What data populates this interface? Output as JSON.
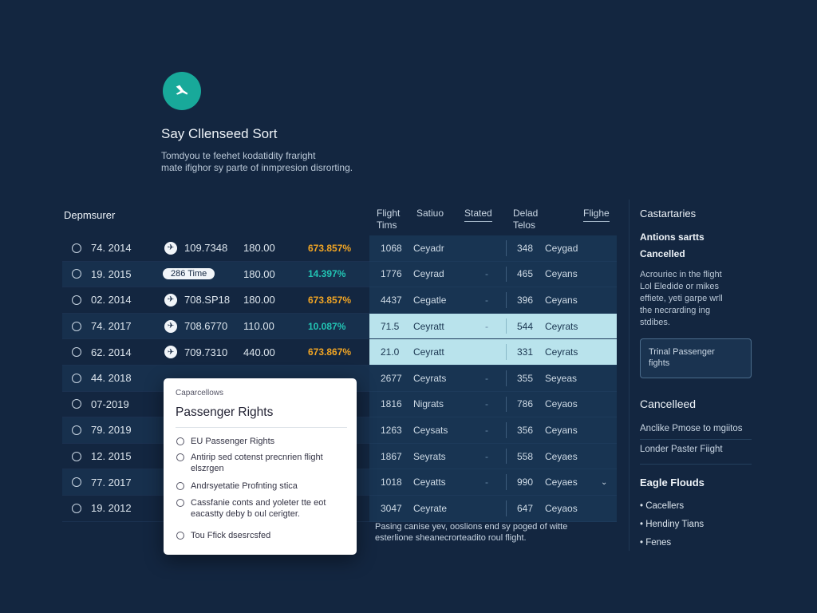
{
  "header": {
    "logo_icon": "plane-icon",
    "title": "Say Cllenseed Sort",
    "subtitle_line1": "Tomdyou te feehet kodatidity fraright",
    "subtitle_line2": "mate ifighor sy parte of inmpresion disrorting."
  },
  "left_table": {
    "header": "Depmsurer",
    "rows": [
      {
        "date": "74. 2014",
        "icon": "plane",
        "code": "109.7348",
        "fare": "180.00",
        "pct": "673.857%",
        "pct_color": "orange"
      },
      {
        "date": "19. 2015",
        "icon": "pill",
        "pill": "286 Time",
        "code": "",
        "fare": "180.00",
        "pct": "14.397%",
        "pct_color": "teal"
      },
      {
        "date": "02. 2014",
        "icon": "plane",
        "code": "708.SP18",
        "fare": "180.00",
        "pct": "673.857%",
        "pct_color": "orange"
      },
      {
        "date": "74. 2017",
        "icon": "plane",
        "code": "708.6770",
        "fare": "110.00",
        "pct": "10.087%",
        "pct_color": "teal"
      },
      {
        "date": "62. 2014",
        "icon": "plane",
        "code": "709.7310",
        "fare": "440.00",
        "pct": "673.867%",
        "pct_color": "orange"
      },
      {
        "date": "44. 2018",
        "icon": "",
        "code": "",
        "fare": "",
        "pct": "",
        "pct_color": ""
      },
      {
        "date": "07-2019",
        "icon": "",
        "code": "",
        "fare": "",
        "pct": "",
        "pct_color": ""
      },
      {
        "date": "79. 2019",
        "icon": "",
        "code": "",
        "fare": "",
        "pct": "",
        "pct_color": ""
      },
      {
        "date": "12. 2015",
        "icon": "",
        "code": "",
        "fare": "",
        "pct": "",
        "pct_color": ""
      },
      {
        "date": "77. 2017",
        "icon": "",
        "code": "",
        "fare": "",
        "pct": "",
        "pct_color": ""
      },
      {
        "date": "19. 2012",
        "icon": "",
        "code": "",
        "fare": "",
        "pct": "",
        "pct_color": ""
      }
    ]
  },
  "mid_table": {
    "headers": [
      {
        "text": "Flight\nTims",
        "underline": false
      },
      {
        "text": "Satiuo",
        "underline": false
      },
      {
        "text": "Stated",
        "underline": true
      },
      {
        "text": "Delad\nTelos",
        "underline": false
      },
      {
        "text": "Flighe",
        "underline": true
      }
    ],
    "rows": [
      {
        "c1": "1068",
        "c2": "Ceyadr",
        "dash": "",
        "c3": "348",
        "c4": "Ceygad",
        "hl": false,
        "chev": ""
      },
      {
        "c1": "1776",
        "c2": "Ceyrad",
        "dash": "-",
        "c3": "465",
        "c4": "Ceyans",
        "hl": false,
        "chev": ""
      },
      {
        "c1": "4437",
        "c2": "Cegatle",
        "dash": "-",
        "c3": "396",
        "c4": "Ceyans",
        "hl": false,
        "chev": ""
      },
      {
        "c1": "71.5",
        "c2": "Ceyratt",
        "dash": "-",
        "c3": "544",
        "c4": "Ceyrats",
        "hl": true,
        "chev": ""
      },
      {
        "c1": "21.0",
        "c2": "Ceyratt",
        "dash": "",
        "c3": "331",
        "c4": "Ceyrats",
        "hl": true,
        "chev": ""
      },
      {
        "c1": "2677",
        "c2": "Ceyrats",
        "dash": "-",
        "c3": "355",
        "c4": "Seyeas",
        "hl": false,
        "chev": ""
      },
      {
        "c1": "1816",
        "c2": "Nigrats",
        "dash": "-",
        "c3": "786",
        "c4": "Ceyaos",
        "hl": false,
        "chev": ""
      },
      {
        "c1": "1263",
        "c2": "Ceysats",
        "dash": "-",
        "c3": "356",
        "c4": "Ceyans",
        "hl": false,
        "chev": ""
      },
      {
        "c1": "1867",
        "c2": "Seyrats",
        "dash": "-",
        "c3": "558",
        "c4": "Ceyaes",
        "hl": false,
        "chev": ""
      },
      {
        "c1": "1018",
        "c2": "Ceyatts",
        "dash": "-",
        "c3": "990",
        "c4": "Ceyaes",
        "hl": false,
        "chev": "⌄"
      },
      {
        "c1": "3047",
        "c2": "Ceyrate",
        "dash": "",
        "c3": "647",
        "c4": "Ceyaos",
        "hl": false,
        "chev": ""
      }
    ],
    "footer_line1": "Pasing canise yev, ooslions end sy poged of witte",
    "footer_line2": "esterlione sheanecrorteadito roul flight."
  },
  "sidebar": {
    "title": "Castartaries",
    "sub1": "Antions sartts",
    "sub2": "Cancelled",
    "desc_lines": [
      "Acrouriec in the flight",
      "Lol Eledide or mikes",
      "effiete, yeti garpe wrll",
      "the necrarding ing",
      "stdibes."
    ],
    "box_line1": "Trinal Passenger",
    "box_line2": "fights",
    "cancelled_title": "Cancelleed",
    "link1": "Anclike Pmose to mgiitos",
    "link2": "Londer Paster Fiight",
    "bold_title": "Eagle Flouds",
    "bullets": [
      "• Cacellers",
      "• Hendiny Tians",
      "• Fenes"
    ]
  },
  "popup": {
    "small_label": "Caparcellows",
    "title": "Passenger Rights",
    "items": [
      {
        "lines": [
          "EU Passenger Rights"
        ]
      },
      {
        "lines": [
          "Antirip sed cotenst precnrien flight",
          "elszrgen"
        ]
      },
      {
        "lines": [
          "Andrsyetatie Profnting stica"
        ]
      },
      {
        "lines": [
          "Cassfanie conts and yoleter tte eot",
          "eacastty deby b oul cerigter."
        ]
      },
      {
        "lines": [
          "Tou Ffick dsesrcsfed"
        ]
      }
    ]
  }
}
